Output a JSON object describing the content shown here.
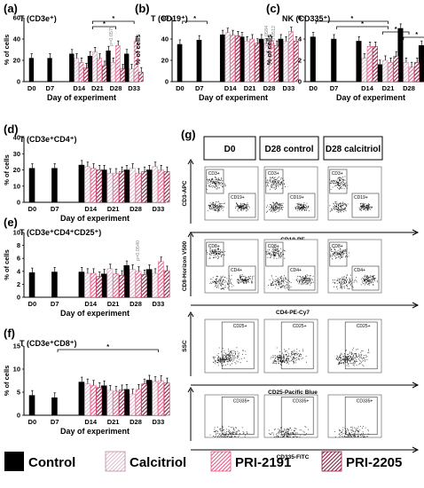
{
  "colors": {
    "control": "#000000",
    "calcitriol": "#d5a9c1",
    "pri2191": "#e8547f",
    "pri2205": "#8c1c42"
  },
  "legend": [
    {
      "label": "Control",
      "pattern": "solid-black"
    },
    {
      "label": "Calcitriol",
      "pattern": "hatch-pink"
    },
    {
      "label": "PRI-2191",
      "pattern": "hatch-red"
    },
    {
      "label": "PRI-2205",
      "pattern": "hatch-dark"
    }
  ],
  "day_labels": [
    "D0",
    "D7",
    "D14",
    "D21",
    "D28",
    "D33"
  ],
  "xlabel": "Day of experiment",
  "ylabel": "% of cells",
  "chart_data": [
    {
      "id": "a",
      "type": "bar",
      "panel_label": "(a)",
      "title": "T (CD3e⁺)",
      "ylim": [
        0,
        60
      ],
      "yticks": [
        "0",
        "20",
        "40",
        "60"
      ],
      "series": [
        {
          "name": "Control",
          "values": [
            22,
            22,
            26,
            24,
            29,
            26
          ]
        },
        {
          "name": "Calcitriol",
          "values": [
            null,
            null,
            22,
            28,
            18,
            12
          ]
        },
        {
          "name": "PRI-2191",
          "values": [
            null,
            null,
            18,
            22,
            34,
            38
          ]
        },
        {
          "name": "PRI-2205",
          "values": [
            null,
            null,
            13,
            15,
            12,
            9
          ]
        }
      ],
      "brackets": [
        {
          "from": 3,
          "to": 5,
          "label": "*"
        },
        {
          "from": 3,
          "to": 4,
          "label": "*"
        }
      ],
      "pvalues": [
        "p=0.0579"
      ]
    },
    {
      "id": "b",
      "type": "bar",
      "panel_label": "(b)",
      "title": "T (CD19⁺)",
      "ylim": [
        0,
        60
      ],
      "yticks": [
        "0",
        "20",
        "40",
        "60"
      ],
      "series": [
        {
          "name": "Control",
          "values": [
            35,
            39,
            44,
            42,
            40,
            40
          ]
        },
        {
          "name": "Calcitriol",
          "values": [
            null,
            null,
            46,
            38,
            36,
            38
          ]
        },
        {
          "name": "PRI-2191",
          "values": [
            null,
            null,
            44,
            40,
            38,
            47
          ]
        },
        {
          "name": "PRI-2205",
          "values": [
            null,
            null,
            43,
            36,
            34,
            38
          ]
        }
      ],
      "brackets": [
        {
          "from": 0,
          "to": 1,
          "label": "*"
        }
      ],
      "pvalues": [
        "p=0.0584",
        "p=0.0512"
      ]
    },
    {
      "id": "c",
      "type": "bar",
      "panel_label": "(c)",
      "title": "NK (CD335⁺)",
      "ylim": [
        0,
        6
      ],
      "yticks": [
        "0",
        "2",
        "4",
        "6"
      ],
      "series": [
        {
          "name": "Control",
          "values": [
            4.2,
            4.0,
            3.8,
            1.6,
            5.0,
            3.4
          ]
        },
        {
          "name": "Calcitriol",
          "values": [
            null,
            null,
            2.2,
            2.0,
            1.8,
            1.0
          ]
        },
        {
          "name": "PRI-2191",
          "values": [
            null,
            null,
            3.3,
            1.8,
            1.4,
            1.0
          ]
        },
        {
          "name": "PRI-2205",
          "values": [
            null,
            null,
            3.3,
            2.4,
            1.8,
            2.4
          ]
        }
      ],
      "brackets": [
        {
          "from": 0,
          "to": 3,
          "label": "*"
        },
        {
          "from": 1,
          "to": 3,
          "label": "*"
        },
        {
          "from": 3,
          "to": 4,
          "label": "*"
        },
        {
          "from": 4,
          "to": 5,
          "label": "*"
        }
      ],
      "pvalues": []
    },
    {
      "id": "d",
      "type": "bar",
      "panel_label": "(d)",
      "title": "T (CD3e⁺CD4⁺)",
      "ylim": [
        0,
        40
      ],
      "yticks": [
        "0",
        "10",
        "20",
        "30",
        "40"
      ],
      "series": [
        {
          "name": "Control",
          "values": [
            21,
            21,
            23,
            20,
            20,
            20
          ]
        },
        {
          "name": "Calcitriol",
          "values": [
            null,
            null,
            22,
            18,
            21,
            22
          ]
        },
        {
          "name": "PRI-2191",
          "values": [
            null,
            null,
            21,
            18,
            18,
            20
          ]
        },
        {
          "name": "PRI-2205",
          "values": [
            null,
            null,
            20,
            19,
            19,
            19
          ]
        }
      ],
      "brackets": [],
      "pvalues": []
    },
    {
      "id": "e",
      "type": "bar",
      "panel_label": "(e)",
      "title": "T (CD3e⁺CD4⁺CD25⁺)",
      "ylim": [
        0,
        10
      ],
      "yticks": [
        "0",
        "2",
        "4",
        "6",
        "8",
        "10"
      ],
      "series": [
        {
          "name": "Control",
          "values": [
            3.8,
            3.9,
            3.9,
            3.6,
            4.9,
            4.3
          ]
        },
        {
          "name": "Calcitriol",
          "values": [
            null,
            null,
            3.7,
            4.4,
            4.3,
            3.7
          ]
        },
        {
          "name": "PRI-2191",
          "values": [
            null,
            null,
            3.7,
            3.6,
            4.0,
            5.5
          ]
        },
        {
          "name": "PRI-2205",
          "values": [
            null,
            null,
            3.2,
            3.4,
            3.5,
            4.1
          ]
        }
      ],
      "brackets": [],
      "pvalues": [
        "p=0.0540"
      ]
    },
    {
      "id": "f",
      "type": "bar",
      "panel_label": "(f)",
      "title": "T (CD3e⁺CD8⁺)",
      "ylim": [
        0,
        15
      ],
      "yticks": [
        "0",
        "5",
        "10",
        "15"
      ],
      "series": [
        {
          "name": "Control",
          "values": [
            4.3,
            3.8,
            7.2,
            6.4,
            5.6,
            7.6
          ]
        },
        {
          "name": "Calcitriol",
          "values": [
            null,
            null,
            6.8,
            5.4,
            4.6,
            7.3
          ]
        },
        {
          "name": "PRI-2191",
          "values": [
            null,
            null,
            6.5,
            5.2,
            5.6,
            7.5
          ]
        },
        {
          "name": "PRI-2205",
          "values": [
            null,
            null,
            6.0,
            5.5,
            6.8,
            7.0
          ]
        }
      ],
      "brackets": [
        {
          "from": 1,
          "to": 5,
          "label": "*"
        }
      ],
      "pvalues": []
    }
  ],
  "flow": {
    "panel_label": "(g)",
    "columns": [
      "D0",
      "D28 control",
      "D28 calcitriol"
    ],
    "rows": [
      {
        "ylabel": "CD3-APC",
        "xlabel": "CD19-PE",
        "gates": [
          "CD3+",
          "CD19+"
        ]
      },
      {
        "ylabel": "CD8-Horizon V500",
        "xlabel": "CD4-PE-Cy7",
        "gates": [
          "CD8+",
          "CD4+"
        ]
      },
      {
        "ylabel": "SSC",
        "xlabel": "CD25-Pacific Blue",
        "gates": [
          "CD25+"
        ]
      },
      {
        "ylabel": "",
        "xlabel": "CD335-FITC",
        "gates": [
          "CD335+"
        ]
      }
    ]
  }
}
